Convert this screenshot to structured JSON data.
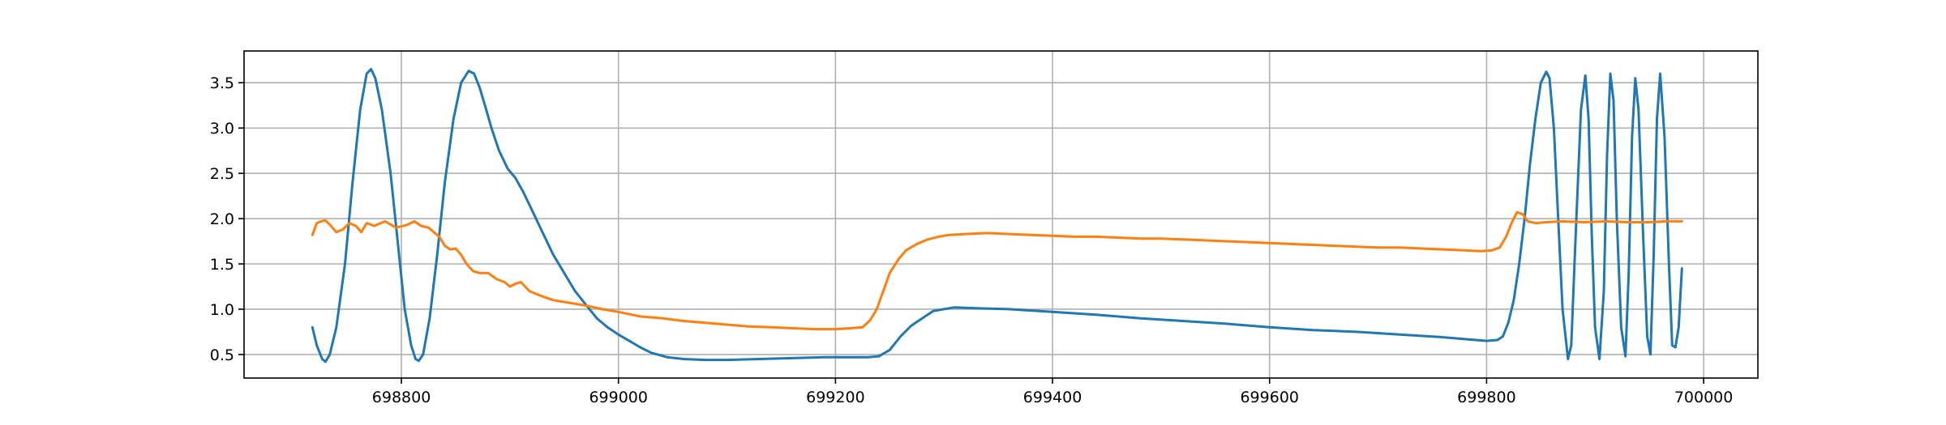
{
  "chart_data": {
    "type": "line",
    "title": "",
    "xlabel": "",
    "ylabel": "",
    "xlim": [
      698655,
      700050
    ],
    "ylim": [
      0.24,
      3.85
    ],
    "grid": true,
    "x_ticks": [
      698800,
      699000,
      699200,
      699400,
      699600,
      699800,
      700000
    ],
    "x_tick_labels": [
      "698800",
      "699000",
      "699200",
      "699400",
      "699600",
      "699800",
      "700000"
    ],
    "y_ticks": [
      0.5,
      1.0,
      1.5,
      2.0,
      2.5,
      3.0,
      3.5
    ],
    "y_tick_labels": [
      "0.5",
      "1.0",
      "1.5",
      "2.0",
      "2.5",
      "3.0",
      "3.5"
    ],
    "colors": {
      "series_1": "#1f77b4",
      "series_2": "#ff7f0e",
      "grid": "#b0b0b0"
    },
    "series": [
      {
        "color": "#1f77b4",
        "x": [
          698718,
          698722,
          698727,
          698730,
          698734,
          698740,
          698748,
          698755,
          698762,
          698768,
          698772,
          698776,
          698782,
          698790,
          698797,
          698803,
          698809,
          698813,
          698816,
          698820,
          698826,
          698833,
          698840,
          698848,
          698855,
          698862,
          698867,
          698872,
          698877,
          698883,
          698890,
          698898,
          698905,
          698912,
          698920,
          698930,
          698940,
          698950,
          698960,
          698970,
          698980,
          698990,
          699000,
          699010,
          699020,
          699030,
          699045,
          699060,
          699080,
          699100,
          699130,
          699160,
          699190,
          699210,
          699230,
          699240,
          699250,
          699260,
          699270,
          699280,
          699290,
          699300,
          699310,
          699330,
          699360,
          699400,
          699440,
          699480,
          699520,
          699560,
          699600,
          699640,
          699680,
          699720,
          699760,
          699780,
          699800,
          699810,
          699815,
          699820,
          699825,
          699830,
          699835,
          699840,
          699845,
          699850,
          699855,
          699858,
          699862,
          699866,
          699870,
          699875,
          699878,
          699882,
          699887,
          699891,
          699894,
          699897,
          699900,
          699904,
          699908,
          699911,
          699914,
          699917,
          699920,
          699924,
          699928,
          699931,
          699934,
          699937,
          699940,
          699944,
          699948,
          699951,
          699954,
          699957,
          699960,
          699964,
          699968,
          699971,
          699974,
          699977,
          699980
        ],
        "y": [
          0.8,
          0.6,
          0.45,
          0.42,
          0.5,
          0.8,
          1.5,
          2.4,
          3.2,
          3.6,
          3.65,
          3.55,
          3.2,
          2.5,
          1.7,
          1.0,
          0.6,
          0.45,
          0.43,
          0.5,
          0.9,
          1.6,
          2.4,
          3.1,
          3.5,
          3.63,
          3.6,
          3.45,
          3.25,
          3.0,
          2.75,
          2.55,
          2.45,
          2.3,
          2.1,
          1.85,
          1.6,
          1.4,
          1.2,
          1.05,
          0.9,
          0.8,
          0.72,
          0.65,
          0.58,
          0.52,
          0.47,
          0.45,
          0.44,
          0.44,
          0.45,
          0.46,
          0.47,
          0.47,
          0.47,
          0.48,
          0.55,
          0.7,
          0.82,
          0.9,
          0.98,
          1.0,
          1.02,
          1.01,
          1.0,
          0.97,
          0.94,
          0.9,
          0.87,
          0.84,
          0.8,
          0.77,
          0.75,
          0.72,
          0.69,
          0.67,
          0.65,
          0.66,
          0.7,
          0.85,
          1.1,
          1.5,
          2.0,
          2.6,
          3.1,
          3.5,
          3.62,
          3.55,
          3.0,
          2.0,
          1.0,
          0.45,
          0.6,
          1.8,
          3.2,
          3.58,
          3.1,
          1.8,
          0.8,
          0.45,
          1.2,
          2.7,
          3.6,
          3.3,
          2.0,
          0.8,
          0.48,
          1.4,
          2.9,
          3.55,
          3.2,
          1.9,
          0.7,
          0.5,
          1.6,
          3.1,
          3.6,
          2.9,
          1.5,
          0.6,
          0.58,
          0.8,
          1.45
        ]
      },
      {
        "color": "#ff7f0e",
        "x": [
          698718,
          698722,
          698726,
          698730,
          698735,
          698740,
          698746,
          698752,
          698758,
          698763,
          698768,
          698775,
          698785,
          698795,
          698805,
          698812,
          698818,
          698825,
          698830,
          698835,
          698840,
          698845,
          698850,
          698855,
          698860,
          698866,
          698872,
          698880,
          698888,
          698895,
          698900,
          698905,
          698910,
          698918,
          698928,
          698940,
          698955,
          698970,
          698985,
          699000,
          699020,
          699040,
          699060,
          699080,
          699100,
          699120,
          699140,
          699160,
          699180,
          699200,
          699215,
          699225,
          699232,
          699238,
          699244,
          699250,
          699258,
          699265,
          699275,
          699285,
          699295,
          699305,
          699320,
          699340,
          699360,
          699380,
          699400,
          699420,
          699440,
          699460,
          699480,
          699500,
          699520,
          699540,
          699560,
          699580,
          699600,
          699620,
          699640,
          699660,
          699680,
          699700,
          699720,
          699740,
          699760,
          699780,
          699795,
          699805,
          699812,
          699818,
          699823,
          699828,
          699833,
          699838,
          699845,
          699855,
          699870,
          699890,
          699910,
          699930,
          699950,
          699965,
          699980
        ],
        "y": [
          1.82,
          1.95,
          1.97,
          1.98,
          1.92,
          1.85,
          1.88,
          1.95,
          1.92,
          1.85,
          1.95,
          1.92,
          1.97,
          1.9,
          1.93,
          1.97,
          1.92,
          1.9,
          1.85,
          1.8,
          1.7,
          1.66,
          1.67,
          1.6,
          1.5,
          1.42,
          1.4,
          1.4,
          1.33,
          1.3,
          1.25,
          1.28,
          1.3,
          1.2,
          1.15,
          1.1,
          1.07,
          1.04,
          1.0,
          0.97,
          0.92,
          0.9,
          0.87,
          0.85,
          0.83,
          0.81,
          0.8,
          0.79,
          0.78,
          0.78,
          0.79,
          0.8,
          0.88,
          1.0,
          1.2,
          1.4,
          1.55,
          1.65,
          1.72,
          1.77,
          1.8,
          1.82,
          1.83,
          1.84,
          1.83,
          1.82,
          1.81,
          1.8,
          1.8,
          1.79,
          1.78,
          1.78,
          1.77,
          1.76,
          1.75,
          1.74,
          1.73,
          1.72,
          1.71,
          1.7,
          1.69,
          1.68,
          1.68,
          1.67,
          1.66,
          1.65,
          1.64,
          1.65,
          1.68,
          1.8,
          1.95,
          2.07,
          2.05,
          1.97,
          1.95,
          1.96,
          1.97,
          1.96,
          1.97,
          1.96,
          1.96,
          1.97,
          1.97
        ]
      }
    ]
  }
}
